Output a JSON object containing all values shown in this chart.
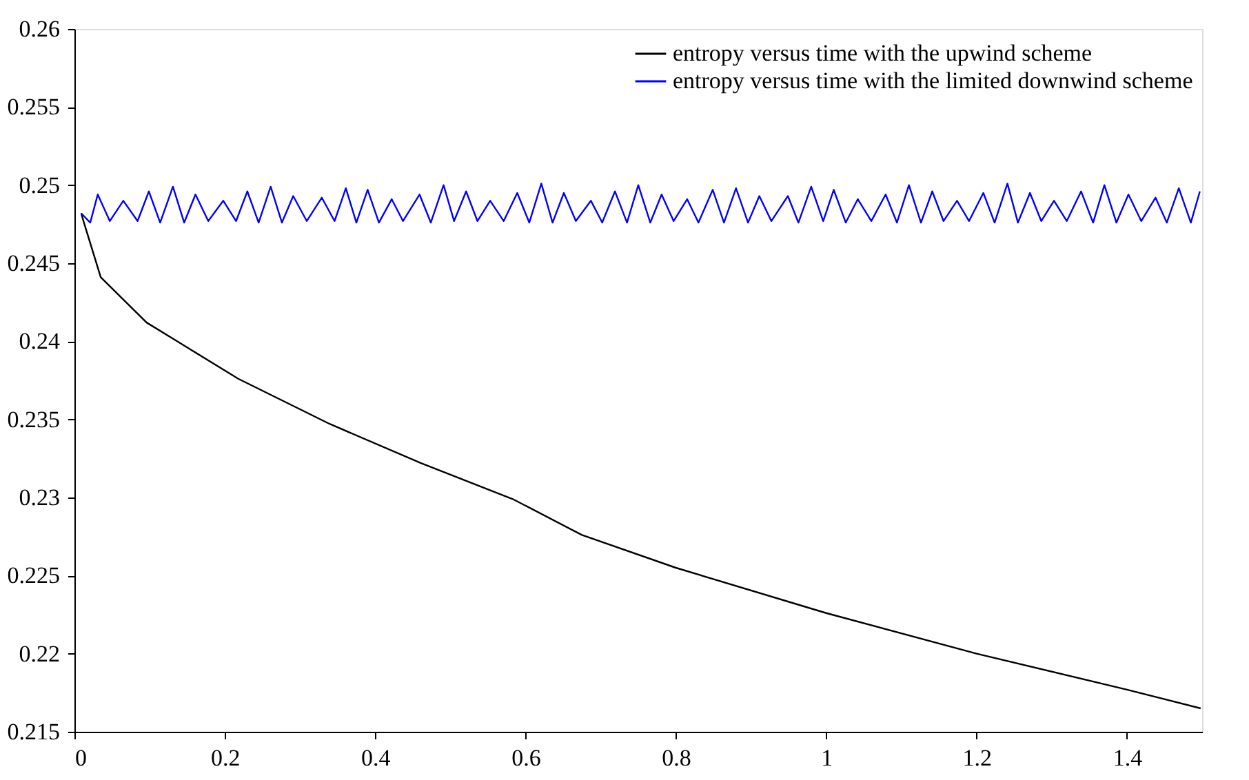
{
  "chart_data": {
    "type": "line",
    "xlim": [
      0,
      1.5
    ],
    "ylim": [
      0.215,
      0.26
    ],
    "xticks": [
      0,
      0.2,
      0.4,
      0.6,
      0.8,
      1,
      1.2,
      1.4
    ],
    "yticks": [
      0.215,
      0.22,
      0.225,
      0.23,
      0.235,
      0.24,
      0.245,
      0.25,
      0.255,
      0.26
    ],
    "grid": false,
    "legend": "top right",
    "line_style": "solid",
    "marker": "none",
    "series": [
      {
        "name": "entropy versus time with the upwind scheme",
        "color": "#000000",
        "x": [
          0.009,
          0.012,
          0.035,
          0.096,
          0.157,
          0.218,
          0.34,
          0.461,
          0.583,
          0.675,
          0.8,
          1.0,
          1.2,
          1.4,
          1.498
        ],
        "values": [
          0.2482,
          0.2477,
          0.2441,
          0.2412,
          0.2394,
          0.2376,
          0.2347,
          0.2322,
          0.2299,
          0.2276,
          0.2255,
          0.2226,
          0.22,
          0.2177,
          0.2165
        ]
      },
      {
        "name": "entropy versus time with the limited downwind scheme",
        "color": "#0000ff",
        "x": [
          0.009,
          0.021,
          0.031,
          0.047,
          0.065,
          0.084,
          0.099,
          0.114,
          0.131,
          0.146,
          0.161,
          0.178,
          0.198,
          0.215,
          0.23,
          0.245,
          0.261,
          0.276,
          0.291,
          0.309,
          0.329,
          0.346,
          0.361,
          0.375,
          0.39,
          0.405,
          0.422,
          0.437,
          0.459,
          0.474,
          0.491,
          0.505,
          0.521,
          0.536,
          0.553,
          0.571,
          0.589,
          0.605,
          0.621,
          0.636,
          0.651,
          0.667,
          0.687,
          0.702,
          0.719,
          0.735,
          0.75,
          0.766,
          0.781,
          0.797,
          0.815,
          0.83,
          0.849,
          0.864,
          0.88,
          0.896,
          0.911,
          0.927,
          0.949,
          0.963,
          0.98,
          0.996,
          1.01,
          1.026,
          1.042,
          1.06,
          1.079,
          1.094,
          1.11,
          1.126,
          1.141,
          1.156,
          1.174,
          1.19,
          1.209,
          1.224,
          1.241,
          1.255,
          1.271,
          1.286,
          1.303,
          1.32,
          1.339,
          1.355,
          1.37,
          1.386,
          1.402,
          1.419,
          1.438,
          1.453,
          1.469,
          1.485,
          1.497
        ],
        "values": [
          0.2482,
          0.2476,
          0.2494,
          0.2477,
          0.249,
          0.2477,
          0.2496,
          0.2476,
          0.2499,
          0.2476,
          0.2494,
          0.2477,
          0.249,
          0.2477,
          0.2496,
          0.2476,
          0.2499,
          0.2476,
          0.2493,
          0.2477,
          0.2492,
          0.2477,
          0.2498,
          0.2476,
          0.2497,
          0.2476,
          0.2491,
          0.2477,
          0.2494,
          0.2476,
          0.25,
          0.2477,
          0.2496,
          0.2477,
          0.249,
          0.2477,
          0.2495,
          0.2476,
          0.2501,
          0.2476,
          0.2495,
          0.2477,
          0.249,
          0.2476,
          0.2496,
          0.2476,
          0.25,
          0.2476,
          0.2494,
          0.2477,
          0.2491,
          0.2476,
          0.2497,
          0.2476,
          0.2498,
          0.2476,
          0.2493,
          0.2477,
          0.2493,
          0.2476,
          0.2499,
          0.2477,
          0.2497,
          0.2476,
          0.2491,
          0.2477,
          0.2494,
          0.2476,
          0.25,
          0.2476,
          0.2496,
          0.2477,
          0.249,
          0.2477,
          0.2495,
          0.2476,
          0.2501,
          0.2476,
          0.2495,
          0.2477,
          0.249,
          0.2477,
          0.2496,
          0.2476,
          0.25,
          0.2476,
          0.2494,
          0.2477,
          0.2492,
          0.2476,
          0.2498,
          0.2476,
          0.2496
        ]
      }
    ]
  }
}
